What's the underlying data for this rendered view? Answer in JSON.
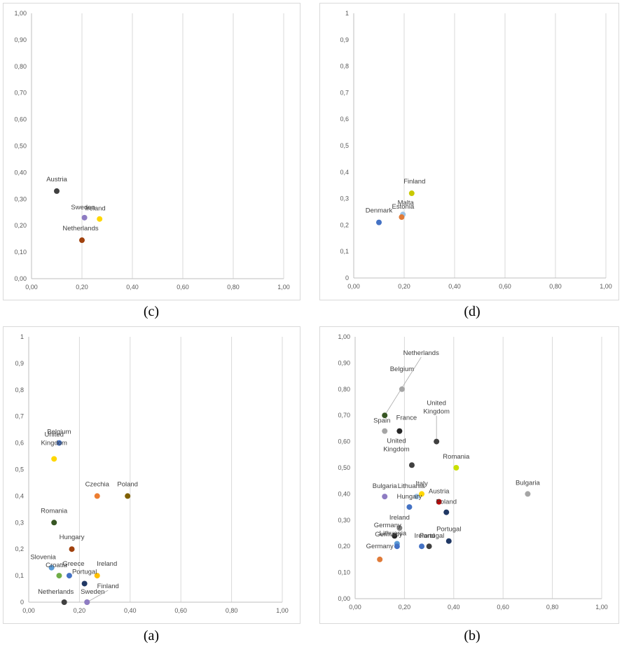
{
  "chart_data": [
    {
      "id": "c",
      "caption": "(c)",
      "type": "scatter",
      "xlim": [
        0,
        1
      ],
      "ylim": [
        0,
        1
      ],
      "xticks": [
        "0,00",
        "0,20",
        "0,40",
        "0,60",
        "0,80",
        "1,00"
      ],
      "yticks": [
        "0,00",
        "0,10",
        "0,20",
        "0,30",
        "0,40",
        "0,50",
        "0,60",
        "0,70",
        "0,80",
        "0,90",
        "1,00"
      ],
      "grid": "vertical",
      "points": [
        {
          "label": "Austria",
          "x": 0.1,
          "y": 0.33,
          "color": "#404040"
        },
        {
          "label": "Sweden",
          "x": 0.21,
          "y": 0.23,
          "color": "#8e7cc3"
        },
        {
          "label": "Ireland",
          "x": 0.27,
          "y": 0.225,
          "color": "#ffd700"
        },
        {
          "label": "Netherlands",
          "x": 0.2,
          "y": 0.145,
          "color": "#a0410d"
        }
      ]
    },
    {
      "id": "d",
      "caption": "(d)",
      "type": "scatter",
      "xlim": [
        0,
        1
      ],
      "ylim": [
        0,
        1
      ],
      "xticks": [
        "0,00",
        "0,20",
        "0,40",
        "0,60",
        "0,80",
        "1,00"
      ],
      "yticks": [
        "0",
        "0,1",
        "0,2",
        "0,3",
        "0,4",
        "0,5",
        "0,6",
        "0,7",
        "0,8",
        "0,9",
        "1"
      ],
      "grid": "vertical",
      "points": [
        {
          "label": "Finland",
          "x": 0.23,
          "y": 0.32,
          "color": "#c9c900"
        },
        {
          "label": "Malta",
          "x": 0.195,
          "y": 0.24,
          "color": "#9dc3e6"
        },
        {
          "label": "Estonia",
          "x": 0.19,
          "y": 0.23,
          "color": "#e07b39"
        },
        {
          "label": "Denmark",
          "x": 0.1,
          "y": 0.21,
          "color": "#4472c4"
        }
      ]
    },
    {
      "id": "a",
      "caption": "(a)",
      "type": "scatter",
      "xlim": [
        0,
        1
      ],
      "ylim": [
        0,
        1
      ],
      "xticks": [
        "0,00",
        "0,20",
        "0,40",
        "0,60",
        "0,80",
        "1,00"
      ],
      "yticks": [
        "0",
        "0,1",
        "0,2",
        "0,3",
        "0,4",
        "0,5",
        "0,6",
        "0,7",
        "0,8",
        "0,9",
        "1"
      ],
      "grid": "vertical",
      "points": [
        {
          "label": "Belgium",
          "x": 0.12,
          "y": 0.6,
          "color": "#4472c4"
        },
        {
          "label": "United Kingdom",
          "x": 0.1,
          "y": 0.54,
          "color": "#ffd700"
        },
        {
          "label": "Czechia",
          "x": 0.27,
          "y": 0.4,
          "color": "#ed7d31"
        },
        {
          "label": "Poland",
          "x": 0.39,
          "y": 0.4,
          "color": "#7f6000"
        },
        {
          "label": "Romania",
          "x": 0.1,
          "y": 0.3,
          "color": "#375623"
        },
        {
          "label": "Hungary",
          "x": 0.17,
          "y": 0.2,
          "color": "#a0410d"
        },
        {
          "label": "Slovenia",
          "x": 0.09,
          "y": 0.13,
          "color": "#5b9bd5"
        },
        {
          "label": "Croatia",
          "x": 0.12,
          "y": 0.1,
          "color": "#70ad47"
        },
        {
          "label": "Greece",
          "x": 0.16,
          "y": 0.1,
          "color": "#4472c4"
        },
        {
          "label": "Ireland",
          "x": 0.27,
          "y": 0.1,
          "color": "#ffc000"
        },
        {
          "label": "Portugal",
          "x": 0.22,
          "y": 0.07,
          "color": "#203864"
        },
        {
          "label": "Finland",
          "x": 0.23,
          "y": 0.0,
          "color": "#a5a5a5"
        },
        {
          "label": "Netherlands",
          "x": 0.14,
          "y": 0.0,
          "color": "#404040"
        },
        {
          "label": "Sweden",
          "x": 0.23,
          "y": 0.0,
          "color": "#8e7cc3"
        }
      ]
    },
    {
      "id": "b",
      "caption": "(b)",
      "type": "scatter",
      "xlim": [
        0,
        1
      ],
      "ylim": [
        0,
        1
      ],
      "xticks": [
        "0,00",
        "0,20",
        "0,40",
        "0,60",
        "0,80",
        "1,00"
      ],
      "yticks": [
        "0,00",
        "0,10",
        "0,20",
        "0,30",
        "0,40",
        "0,50",
        "0,60",
        "0,70",
        "0,80",
        "0,90",
        "1,00"
      ],
      "grid": "vertical",
      "points": [
        {
          "label": "Netherlands",
          "x": 0.12,
          "y": 0.7,
          "color": "#375623"
        },
        {
          "label": "Belgium",
          "x": 0.19,
          "y": 0.8,
          "color": "#a5a5a5"
        },
        {
          "label": "Spain",
          "x": 0.12,
          "y": 0.64,
          "color": "#a5a5a5"
        },
        {
          "label": "France",
          "x": 0.18,
          "y": 0.64,
          "color": "#262626"
        },
        {
          "label": "United Kingdom",
          "x": 0.33,
          "y": 0.6,
          "color": "#404040"
        },
        {
          "label": "United Kingdom",
          "x": 0.23,
          "y": 0.51,
          "color": "#404040"
        },
        {
          "label": "Romania",
          "x": 0.41,
          "y": 0.5,
          "color": "#c9e000"
        },
        {
          "label": "Bulgaria",
          "x": 0.7,
          "y": 0.4,
          "color": "#a5a5a5"
        },
        {
          "label": "Bulgaria",
          "x": 0.12,
          "y": 0.39,
          "color": "#8e7cc3"
        },
        {
          "label": "Lithuania",
          "x": 0.25,
          "y": 0.39,
          "color": "#9dc3e6"
        },
        {
          "label": "Italy",
          "x": 0.27,
          "y": 0.4,
          "color": "#ffd700"
        },
        {
          "label": "Austria",
          "x": 0.34,
          "y": 0.37,
          "color": "#c00000"
        },
        {
          "label": "Hungary",
          "x": 0.22,
          "y": 0.35,
          "color": "#4472c4"
        },
        {
          "label": "Poland",
          "x": 0.37,
          "y": 0.33,
          "color": "#203864"
        },
        {
          "label": "Ireland",
          "x": 0.18,
          "y": 0.27,
          "color": "#7f7f7f"
        },
        {
          "label": "Germany",
          "x": 0.16,
          "y": 0.24,
          "color": "#262626"
        },
        {
          "label": "Portugal",
          "x": 0.38,
          "y": 0.22,
          "color": "#203864"
        },
        {
          "label": "Lithuania",
          "x": 0.17,
          "y": 0.21,
          "color": "#5b9bd5"
        },
        {
          "label": "Ireland",
          "x": 0.27,
          "y": 0.2,
          "color": "#4472c4"
        },
        {
          "label": "Portugal",
          "x": 0.3,
          "y": 0.2,
          "color": "#404040"
        },
        {
          "label": "Germany",
          "x": 0.17,
          "y": 0.2,
          "color": "#4472c4"
        },
        {
          "label": "Germany",
          "x": 0.1,
          "y": 0.15,
          "color": "#e07b39"
        }
      ]
    }
  ]
}
